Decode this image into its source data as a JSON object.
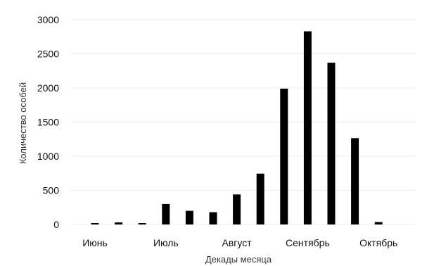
{
  "chart_data": {
    "type": "bar",
    "xlabel": "Декады месяца",
    "ylabel": "Количество особей",
    "ylim": [
      0,
      3000
    ],
    "yticks": [
      0,
      500,
      1000,
      1500,
      2000,
      2500,
      3000
    ],
    "grid": true,
    "bar_color": "#000000",
    "months": [
      {
        "label": "Июнь",
        "values": [
          10,
          30,
          5
        ]
      },
      {
        "label": "Июль",
        "values": [
          300,
          200,
          180
        ]
      },
      {
        "label": "Август",
        "values": [
          440,
          745,
          1990
        ]
      },
      {
        "label": "Сентябрь",
        "values": [
          2830,
          2370,
          1265
        ]
      },
      {
        "label": "Октябрь",
        "values": [
          35
        ]
      }
    ]
  }
}
